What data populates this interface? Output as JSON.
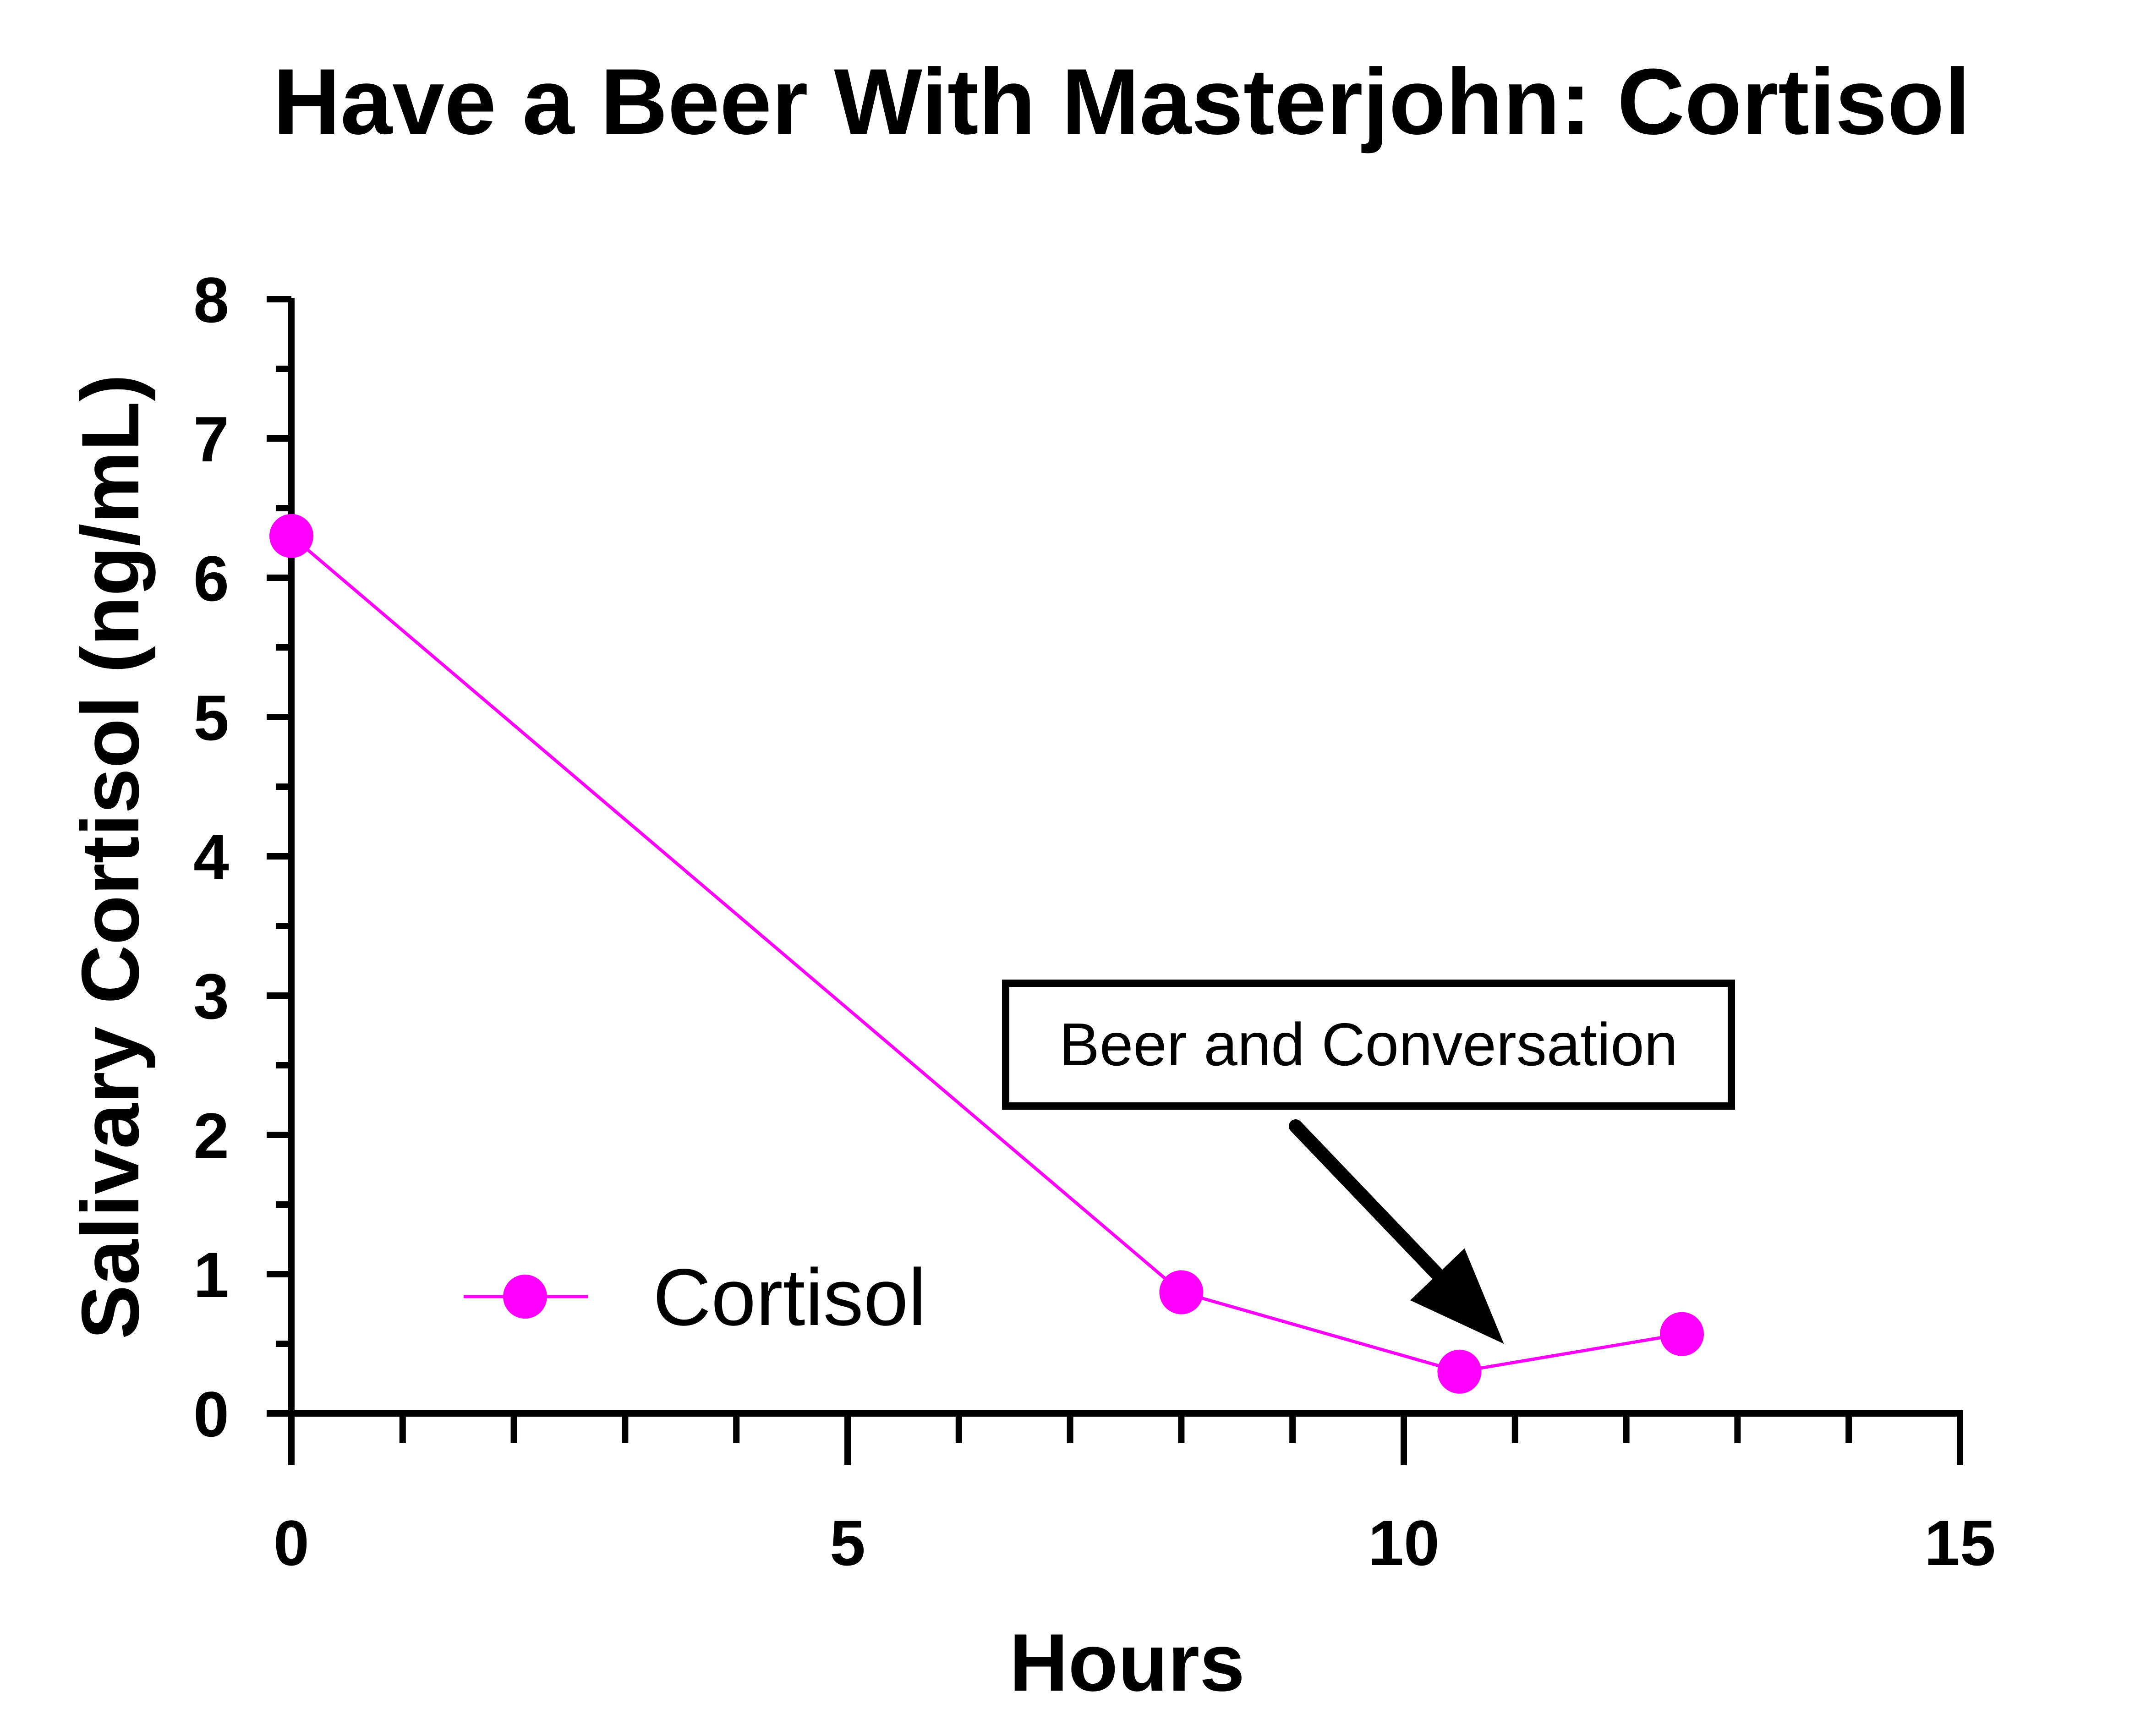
{
  "chart_data": {
    "type": "line",
    "title": "Have a Beer With Masterjohn: Cortisol",
    "xlabel": "Hours",
    "ylabel": "Salivary Cortisol (ng/mL)",
    "xlim": [
      0,
      15
    ],
    "ylim": [
      0,
      8
    ],
    "x_ticks": [
      "0",
      "5",
      "10",
      "15"
    ],
    "y_ticks": [
      "0",
      "1",
      "2",
      "3",
      "4",
      "5",
      "6",
      "7",
      "8"
    ],
    "x_minor_tick_step": 1,
    "y_minor_tick_step": 0.5,
    "grid": false,
    "legend_position": "bottom-left",
    "series": [
      {
        "name": "Cortisol",
        "color": "#ff00ff",
        "marker": "circle",
        "x": [
          0,
          8,
          10.5,
          12.5
        ],
        "y": [
          6.3,
          0.87,
          0.3,
          0.57
        ]
      }
    ],
    "annotation": {
      "text": "Beer and Conversation",
      "points_to": {
        "x": 10.9,
        "y": 0.5
      }
    }
  }
}
